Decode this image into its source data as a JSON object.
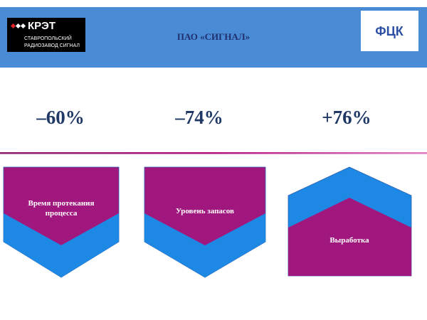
{
  "header": {
    "title": "ПАО «СИГНАЛ»",
    "logo_left": {
      "name": "КРЭТ",
      "subtitle_lines": [
        "СТАВРОПОЛЬСКИЙ",
        "РАДИОЗАВОД СИГНАЛ"
      ]
    },
    "logo_right": {
      "name": "ФЦК"
    }
  },
  "metrics": [
    "–60%",
    "–74%",
    "+76%"
  ],
  "blocks": [
    {
      "label_lines": [
        "Время протекания",
        "процесса"
      ]
    },
    {
      "label_lines": [
        "Уровень запасов"
      ]
    },
    {
      "label_lines": [
        "Выработка"
      ]
    }
  ]
}
